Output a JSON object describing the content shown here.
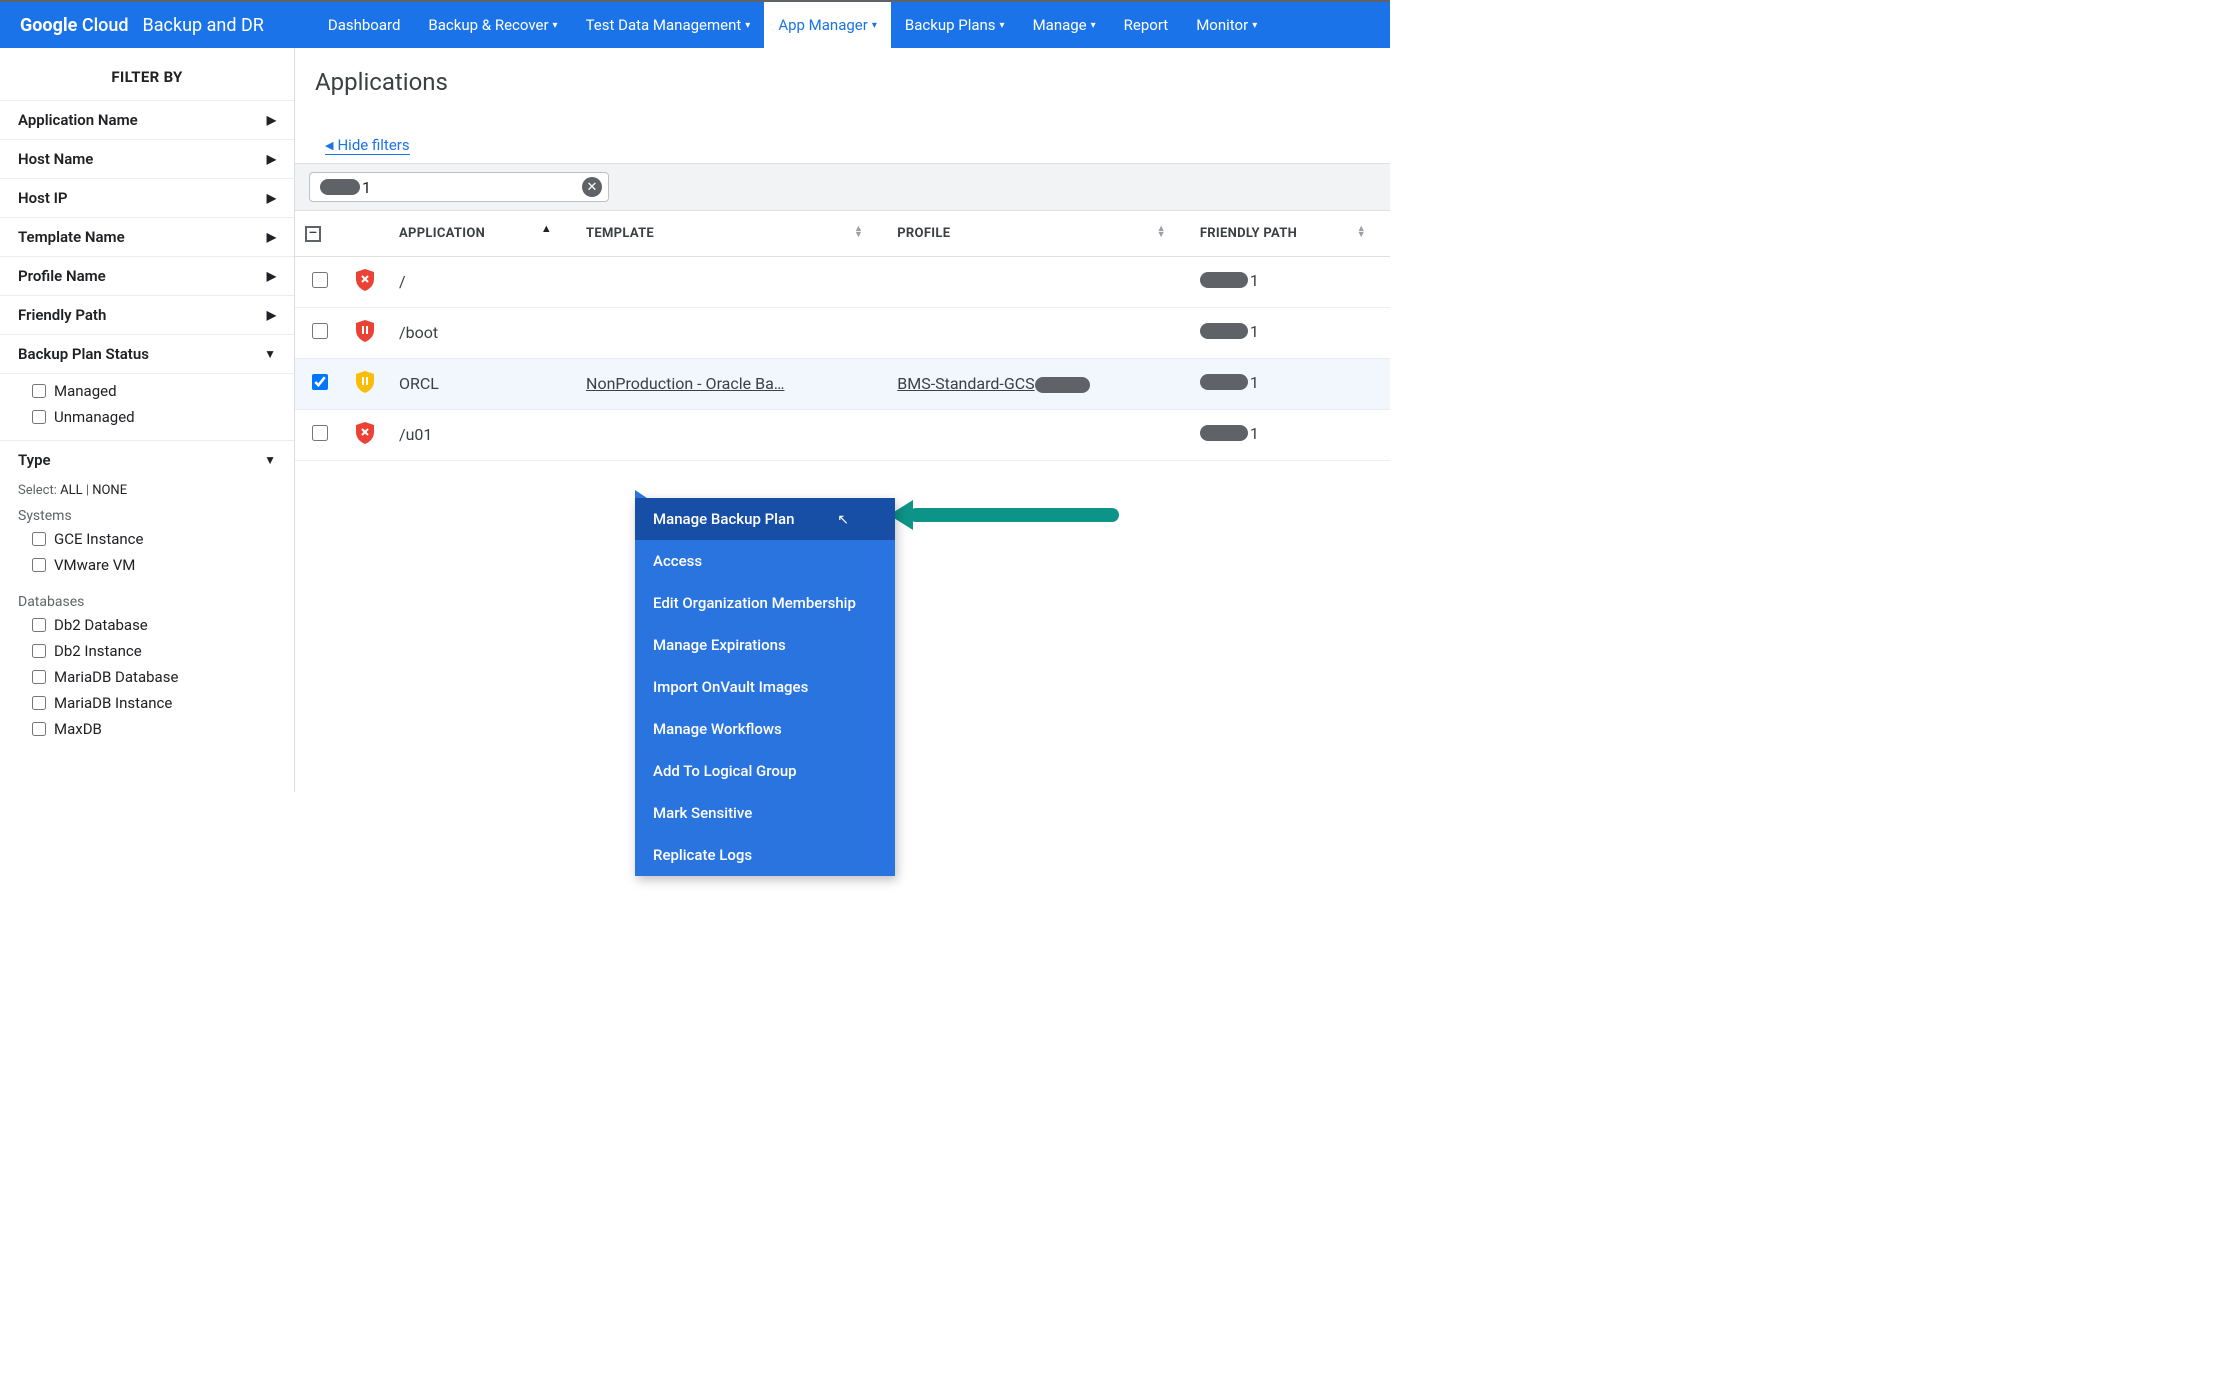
{
  "brand": {
    "logo_bold": "Google",
    "logo_rest": " Cloud",
    "product": "Backup and DR"
  },
  "nav": [
    {
      "label": "Dashboard",
      "dropdown": false,
      "active": false
    },
    {
      "label": "Backup & Recover",
      "dropdown": true,
      "active": false
    },
    {
      "label": "Test Data Management",
      "dropdown": true,
      "active": false
    },
    {
      "label": "App Manager",
      "dropdown": true,
      "active": true
    },
    {
      "label": "Backup Plans",
      "dropdown": true,
      "active": false
    },
    {
      "label": "Manage",
      "dropdown": true,
      "active": false
    },
    {
      "label": "Report",
      "dropdown": false,
      "active": false
    },
    {
      "label": "Monitor",
      "dropdown": true,
      "active": false
    }
  ],
  "sidebar": {
    "title": "FILTER BY",
    "filters": [
      {
        "label": "Application Name",
        "expanded": false
      },
      {
        "label": "Host Name",
        "expanded": false
      },
      {
        "label": "Host IP",
        "expanded": false
      },
      {
        "label": "Template Name",
        "expanded": false
      },
      {
        "label": "Profile Name",
        "expanded": false
      },
      {
        "label": "Friendly Path",
        "expanded": false
      }
    ],
    "backup_plan_status": {
      "label": "Backup Plan Status",
      "options": [
        "Managed",
        "Unmanaged"
      ]
    },
    "type": {
      "label": "Type",
      "select_text": "Select:",
      "all": "ALL",
      "none": "NONE",
      "systems_label": "Systems",
      "systems": [
        "GCE Instance",
        "VMware VM"
      ],
      "databases_label": "Databases",
      "databases": [
        "Db2 Database",
        "Db2 Instance",
        "MariaDB Database",
        "MariaDB Instance",
        "MaxDB"
      ]
    }
  },
  "main": {
    "title": "Applications",
    "hide_filters": "Hide filters",
    "chip_trail": "1",
    "columns": {
      "application": "APPLICATION",
      "template": "TEMPLATE",
      "profile": "PROFILE",
      "friendly_path": "FRIENDLY PATH"
    },
    "rows": [
      {
        "shield": "red-x",
        "application": "/",
        "template": "",
        "profile": "",
        "fp_trail": "1",
        "selected": false
      },
      {
        "shield": "red-pause",
        "application": "/boot",
        "template": "",
        "profile": "",
        "fp_trail": "1",
        "selected": false
      },
      {
        "shield": "yellow-pause",
        "application": "ORCL",
        "template": "NonProduction - Oracle Ba…",
        "profile": "BMS-Standard-GCS",
        "fp_trail": "1",
        "selected": true
      },
      {
        "shield": "red-x",
        "application": "/u01",
        "template": "",
        "profile": "",
        "fp_trail": "1",
        "selected": false
      }
    ]
  },
  "context_menu": {
    "items": [
      "Manage Backup Plan",
      "Access",
      "Edit Organization Membership",
      "Manage Expirations",
      "Import OnVault Images",
      "Manage Workflows",
      "Add To Logical Group",
      "Mark Sensitive",
      "Replicate Logs"
    ],
    "hover_index": 0
  },
  "colors": {
    "primary": "#1a73e8",
    "menu_bg": "#2a74e0",
    "menu_hover": "#174ea6",
    "arrow": "#0d9488",
    "shield_red": "#ea4335",
    "shield_yellow": "#fbbc04"
  }
}
